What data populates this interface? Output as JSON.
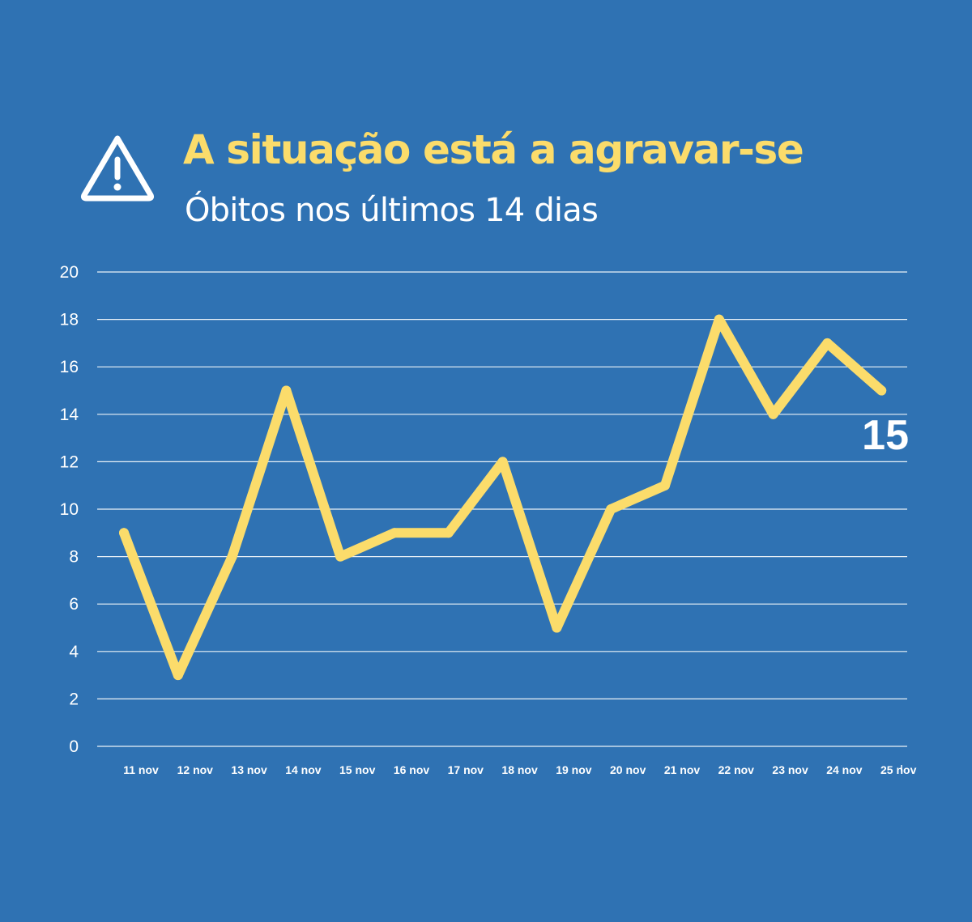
{
  "header": {
    "icon": "warning-triangle-icon",
    "title": "A situação está a agravar-se",
    "subtitle": "Óbitos nos últimos 14 dias"
  },
  "colors": {
    "background": "#2f72b3",
    "line": "#fbdc6b",
    "title": "#fbdc6b",
    "text": "#ffffff",
    "grid": "#ffffff"
  },
  "chart_data": {
    "type": "line",
    "title": "",
    "xlabel": "",
    "ylabel": "",
    "categories": [
      "11 nov",
      "12 nov",
      "13 nov",
      "14 nov",
      "15 nov",
      "16 nov",
      "17 nov",
      "18 nov",
      "19 nov",
      "20 nov",
      "21 nov",
      "22 nov",
      "23 nov",
      "24 nov",
      "25 nov"
    ],
    "series": [
      {
        "values": [
          9,
          3,
          8,
          15,
          8,
          9,
          9,
          12,
          5,
          10,
          11,
          18,
          14,
          17,
          15
        ]
      }
    ],
    "ylim": [
      0,
      20
    ],
    "yticks": [
      0,
      2,
      4,
      6,
      8,
      10,
      12,
      14,
      16,
      18,
      20
    ],
    "grid": true,
    "legend": "none",
    "end_label": "15"
  }
}
